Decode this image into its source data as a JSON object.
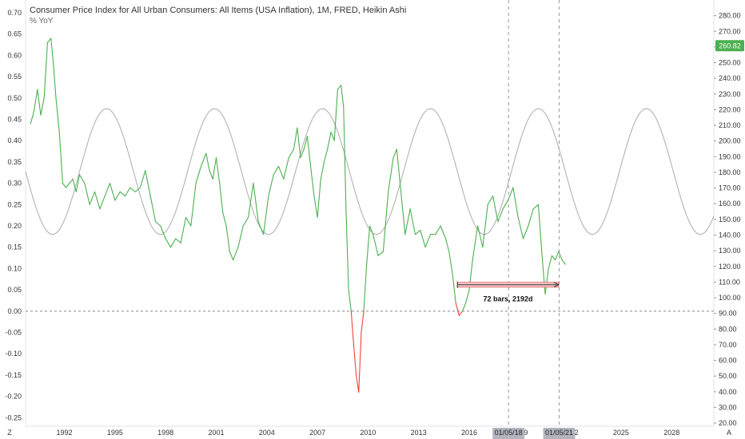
{
  "title": "Consumer Price Index for All Urban Consumers: All Items (USA Inflation), 1M, FRED, Heikin Ashi",
  "subtitle": "% YoY",
  "colors": {
    "up": "#4caf50",
    "down": "#f44336",
    "cycle": "#b2b2b2",
    "zero_line": "#888888",
    "price_badge": "#4caf50",
    "measure_fill": "#f8c8cc",
    "measure_border": "#e57373",
    "date_flag": "#b2b5be",
    "axis_text": "#333333"
  },
  "chart_data": {
    "type": "line",
    "title": "Consumer Price Index for All Urban Consumers: All Items (USA Inflation), 1M, FRED, Heikin Ashi",
    "subtitle": "% YoY",
    "left_axis": {
      "ylim": [
        -0.27,
        0.73
      ],
      "ticks": [
        "0.70",
        "0.65",
        "0.60",
        "0.55",
        "0.50",
        "0.45",
        "0.40",
        "0.35",
        "0.30",
        "0.25",
        "0.20",
        "0.15",
        "0.10",
        "0.05",
        "0.00",
        "-0.05",
        "-0.10",
        "-0.15",
        "-0.20",
        "-0.25"
      ],
      "tick_values": [
        0.7,
        0.65,
        0.6,
        0.55,
        0.5,
        0.45,
        0.4,
        0.35,
        0.3,
        0.25,
        0.2,
        0.15,
        0.1,
        0.05,
        0.0,
        -0.05,
        -0.1,
        -0.15,
        -0.2,
        -0.25
      ]
    },
    "right_axis": {
      "ylim": [
        18,
        290
      ],
      "ticks": [
        "280.00",
        "270.00",
        "260.00",
        "250.00",
        "240.00",
        "230.00",
        "220.00",
        "210.00",
        "200.00",
        "190.00",
        "180.00",
        "170.00",
        "160.00",
        "150.00",
        "140.00",
        "130.00",
        "120.00",
        "110.00",
        "100.00",
        "90.00",
        "80.00",
        "70.00",
        "60.00",
        "50.00",
        "40.00",
        "30.00",
        "20.00"
      ],
      "tick_values": [
        280,
        270,
        260,
        250,
        240,
        230,
        220,
        210,
        200,
        190,
        180,
        170,
        160,
        150,
        140,
        130,
        120,
        110,
        100,
        90,
        80,
        70,
        60,
        50,
        40,
        30,
        20
      ],
      "current_value_label": "260.82",
      "current_value": 260.82
    },
    "x_axis": {
      "xlim": [
        1989.7,
        2030.5
      ],
      "ticks": [
        "1992",
        "1995",
        "1998",
        "2001",
        "2004",
        "2007",
        "2010",
        "2013",
        "2016",
        "2019",
        "2022",
        "2025",
        "2028"
      ],
      "tick_years": [
        1992,
        1995,
        1998,
        2001,
        2004,
        2007,
        2010,
        2013,
        2016,
        2019,
        2022,
        2025,
        2028
      ],
      "marked_dates": [
        "01/05/18",
        "01/05/21"
      ],
      "marked_date_years": [
        2018.33,
        2021.33
      ],
      "corner_labels": [
        "Z",
        "A"
      ]
    },
    "zero_line": 0.0,
    "yoy_series": {
      "name": "",
      "x": [
        1990.0,
        1990.2,
        1990.4,
        1990.6,
        1990.8,
        1991.0,
        1991.2,
        1991.35,
        1991.5,
        1991.7,
        1991.9,
        1992.1,
        1992.3,
        1992.5,
        1992.7,
        1992.9,
        1993.2,
        1993.5,
        1993.8,
        1994.1,
        1994.4,
        1994.7,
        1995.0,
        1995.3,
        1995.6,
        1995.9,
        1996.2,
        1996.5,
        1996.8,
        1997.1,
        1997.4,
        1997.7,
        1998.0,
        1998.3,
        1998.6,
        1998.9,
        1999.2,
        1999.5,
        1999.8,
        2000.1,
        2000.4,
        2000.6,
        2000.8,
        2001.0,
        2001.2,
        2001.4,
        2001.6,
        2001.8,
        2002.0,
        2002.3,
        2002.6,
        2002.9,
        2003.2,
        2003.5,
        2003.8,
        2004.1,
        2004.4,
        2004.7,
        2005.0,
        2005.3,
        2005.6,
        2005.8,
        2006.0,
        2006.2,
        2006.4,
        2006.6,
        2006.8,
        2007.0,
        2007.2,
        2007.4,
        2007.6,
        2007.8,
        2008.0,
        2008.2,
        2008.4,
        2008.55,
        2008.7,
        2008.85,
        2009.0,
        2009.15,
        2009.3,
        2009.45,
        2009.6,
        2009.75,
        2009.9,
        2010.1,
        2010.3,
        2010.6,
        2010.9,
        2011.2,
        2011.5,
        2011.7,
        2011.9,
        2012.2,
        2012.5,
        2012.8,
        2013.1,
        2013.4,
        2013.7,
        2014.0,
        2014.3,
        2014.6,
        2014.8,
        2015.0,
        2015.2,
        2015.4,
        2015.6,
        2015.8,
        2016.0,
        2016.2,
        2016.5,
        2016.8,
        2017.1,
        2017.4,
        2017.7,
        2018.0,
        2018.3,
        2018.6,
        2018.9,
        2019.2,
        2019.5,
        2019.8,
        2020.1,
        2020.3,
        2020.5,
        2020.7,
        2020.9,
        2021.1,
        2021.3,
        2021.5,
        2021.7
      ],
      "y": [
        0.44,
        0.47,
        0.52,
        0.46,
        0.5,
        0.63,
        0.64,
        0.58,
        0.5,
        0.42,
        0.3,
        0.29,
        0.3,
        0.31,
        0.28,
        0.32,
        0.3,
        0.25,
        0.28,
        0.24,
        0.27,
        0.3,
        0.26,
        0.28,
        0.27,
        0.29,
        0.28,
        0.29,
        0.33,
        0.27,
        0.21,
        0.2,
        0.17,
        0.15,
        0.17,
        0.16,
        0.22,
        0.2,
        0.3,
        0.34,
        0.37,
        0.33,
        0.31,
        0.36,
        0.3,
        0.23,
        0.2,
        0.14,
        0.12,
        0.15,
        0.2,
        0.22,
        0.3,
        0.21,
        0.18,
        0.27,
        0.32,
        0.34,
        0.31,
        0.36,
        0.38,
        0.43,
        0.36,
        0.38,
        0.41,
        0.34,
        0.27,
        0.22,
        0.31,
        0.35,
        0.38,
        0.42,
        0.4,
        0.52,
        0.53,
        0.48,
        0.23,
        0.05,
        0.0,
        -0.08,
        -0.15,
        -0.19,
        -0.05,
        0.0,
        0.1,
        0.2,
        0.18,
        0.13,
        0.14,
        0.28,
        0.36,
        0.38,
        0.3,
        0.18,
        0.24,
        0.18,
        0.19,
        0.15,
        0.18,
        0.18,
        0.2,
        0.17,
        0.14,
        0.09,
        0.02,
        -0.01,
        0.0,
        0.02,
        0.05,
        0.12,
        0.2,
        0.15,
        0.25,
        0.27,
        0.21,
        0.24,
        0.26,
        0.29,
        0.22,
        0.17,
        0.2,
        0.24,
        0.25,
        0.14,
        0.04,
        0.1,
        0.13,
        0.12,
        0.14,
        0.12,
        0.11
      ]
    },
    "cycle_series": {
      "name": "",
      "period_years": 6.4,
      "peak_value": 0.475,
      "trough_value": 0.18,
      "first_trough_year": 1991.3
    },
    "measurement": {
      "label": "72 bars, 2192d",
      "start_year": 2015.3,
      "end_year": 2021.3,
      "level": 0.062
    }
  }
}
